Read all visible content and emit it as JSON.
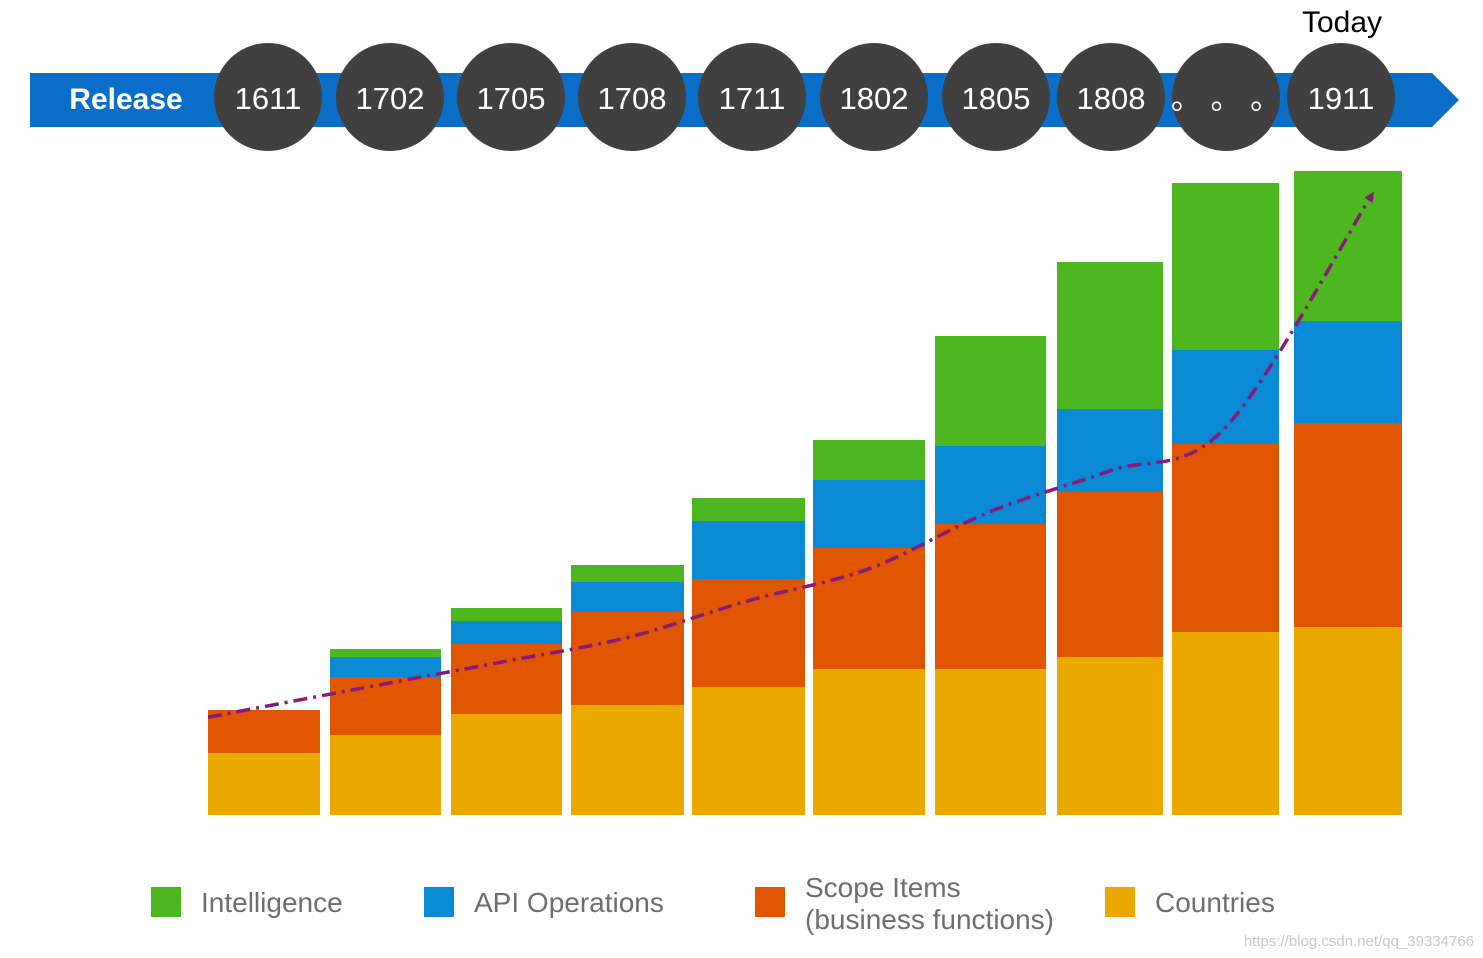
{
  "header": {
    "release_label": "Release",
    "today_label": "Today",
    "arrow_color": "#0a6ec8",
    "circle_color": "#404040"
  },
  "chart_data": {
    "type": "bar",
    "stacked": true,
    "categories": [
      "1611",
      "1702",
      "1705",
      "1708",
      "1711",
      "1802",
      "1805",
      "1808",
      "。 。 。",
      "1911"
    ],
    "series": [
      {
        "name": "Countries",
        "color": "#eba900",
        "values": [
          62,
          80,
          101,
          110,
          128,
          146,
          146,
          158,
          183,
          188
        ]
      },
      {
        "name": "Scope Items\n(business functions)",
        "color": "#e05500",
        "values": [
          43,
          58,
          70,
          93,
          108,
          121,
          145,
          165,
          188,
          204
        ]
      },
      {
        "name": "API Operations",
        "color": "#0a89d4",
        "values": [
          0,
          20,
          23,
          30,
          58,
          68,
          78,
          83,
          94,
          102
        ]
      },
      {
        "name": "Intelligence",
        "color": "#4cb71f",
        "values": [
          0,
          8,
          13,
          17,
          23,
          40,
          110,
          147,
          167,
          150
        ]
      }
    ],
    "trend_line": {
      "color": "#8a1a7a",
      "style": "dash-dot",
      "arrow": true
    },
    "ylim": [
      0,
      645
    ],
    "grid": false,
    "legend_position": "bottom",
    "legend_order": [
      "Intelligence",
      "API Operations",
      "Scope Items\n(business functions)",
      "Countries"
    ]
  },
  "watermark": "https://blog.csdn.net/qq_39334766"
}
